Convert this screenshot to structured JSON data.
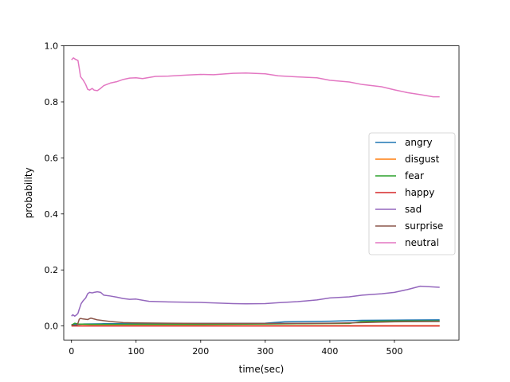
{
  "chart_data": {
    "type": "line",
    "xlabel": "time(sec)",
    "ylabel": "probability",
    "xlim": [
      -12,
      600
    ],
    "ylim": [
      -0.05,
      1.0
    ],
    "x_ticks": [
      0,
      100,
      200,
      300,
      400,
      500
    ],
    "y_ticks": [
      0.0,
      0.2,
      0.4,
      0.6,
      0.8,
      1.0
    ],
    "x_tick_labels": [
      "0",
      "100",
      "200",
      "300",
      "400",
      "500"
    ],
    "y_tick_labels": [
      "0.0",
      "0.2",
      "0.4",
      "0.6",
      "0.8",
      "1.0"
    ],
    "grid": false,
    "legend_position": "center-right",
    "series": [
      {
        "name": "angry",
        "color": "#1f77b4",
        "x": [
          0,
          10,
          20,
          50,
          100,
          200,
          300,
          330,
          400,
          450,
          500,
          570
        ],
        "y": [
          0.005,
          0.006,
          0.007,
          0.008,
          0.008,
          0.009,
          0.01,
          0.015,
          0.017,
          0.02,
          0.021,
          0.022
        ]
      },
      {
        "name": "disgust",
        "color": "#ff7f0e",
        "x": [
          0,
          100,
          200,
          300,
          400,
          500,
          570
        ],
        "y": [
          0.001,
          0.001,
          0.001,
          0.001,
          0.001,
          0.001,
          0.001
        ]
      },
      {
        "name": "fear",
        "color": "#2ca02c",
        "x": [
          0,
          5,
          10,
          30,
          60,
          100,
          200,
          300,
          350,
          430,
          450,
          500,
          570
        ],
        "y": [
          0.003,
          0.01,
          0.007,
          0.006,
          0.006,
          0.006,
          0.006,
          0.007,
          0.008,
          0.009,
          0.016,
          0.018,
          0.018
        ]
      },
      {
        "name": "happy",
        "color": "#d62728",
        "x": [
          0,
          100,
          200,
          300,
          400,
          500,
          570
        ],
        "y": [
          0.0,
          0.0,
          0.0,
          0.0,
          0.0,
          0.0,
          0.0
        ]
      },
      {
        "name": "sad",
        "color": "#9467bd",
        "x": [
          0,
          2,
          5,
          8,
          10,
          12,
          15,
          18,
          22,
          25,
          28,
          32,
          35,
          40,
          45,
          50,
          60,
          70,
          80,
          90,
          100,
          110,
          120,
          150,
          200,
          250,
          270,
          300,
          320,
          350,
          380,
          400,
          430,
          450,
          480,
          500,
          520,
          540,
          570
        ],
        "y": [
          0.035,
          0.04,
          0.035,
          0.04,
          0.045,
          0.06,
          0.08,
          0.09,
          0.1,
          0.115,
          0.12,
          0.118,
          0.12,
          0.122,
          0.12,
          0.11,
          0.107,
          0.103,
          0.098,
          0.095,
          0.096,
          0.092,
          0.088,
          0.086,
          0.084,
          0.08,
          0.079,
          0.08,
          0.083,
          0.087,
          0.093,
          0.1,
          0.104,
          0.11,
          0.115,
          0.12,
          0.13,
          0.142,
          0.138
        ]
      },
      {
        "name": "surprise",
        "color": "#8c564b",
        "x": [
          0,
          8,
          10,
          12,
          14,
          18,
          25,
          30,
          40,
          60,
          80,
          100,
          150,
          200,
          300,
          400,
          450,
          500,
          570
        ],
        "y": [
          0.003,
          0.002,
          0.01,
          0.024,
          0.027,
          0.025,
          0.023,
          0.028,
          0.022,
          0.016,
          0.012,
          0.011,
          0.01,
          0.009,
          0.009,
          0.01,
          0.012,
          0.015,
          0.016
        ]
      },
      {
        "name": "neutral",
        "color": "#e377c2",
        "x": [
          0,
          3,
          6,
          10,
          12,
          14,
          18,
          22,
          25,
          28,
          32,
          35,
          40,
          45,
          50,
          60,
          70,
          80,
          90,
          100,
          110,
          120,
          130,
          150,
          180,
          200,
          220,
          250,
          270,
          300,
          320,
          350,
          380,
          400,
          430,
          450,
          480,
          500,
          520,
          540,
          560,
          570
        ],
        "y": [
          0.95,
          0.957,
          0.952,
          0.948,
          0.92,
          0.89,
          0.878,
          0.862,
          0.845,
          0.842,
          0.848,
          0.842,
          0.84,
          0.848,
          0.858,
          0.867,
          0.872,
          0.88,
          0.885,
          0.886,
          0.883,
          0.887,
          0.891,
          0.892,
          0.896,
          0.898,
          0.897,
          0.902,
          0.903,
          0.9,
          0.893,
          0.889,
          0.886,
          0.877,
          0.871,
          0.862,
          0.854,
          0.843,
          0.833,
          0.826,
          0.818,
          0.818
        ]
      }
    ]
  }
}
